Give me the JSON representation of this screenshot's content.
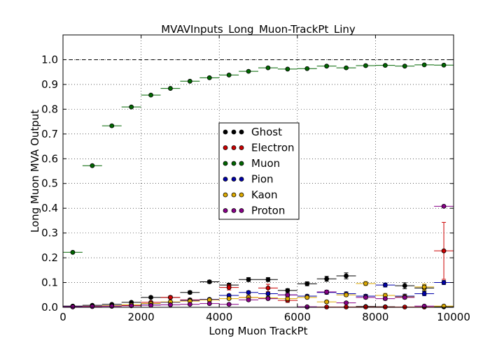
{
  "chart_data": {
    "type": "scatter",
    "title": "MVAVInputs_Long_Muon-TrackPt_Liny",
    "xlabel": "Long Muon TrackPt",
    "ylabel": "Long Muon MVA Output",
    "xlim": [
      0,
      10000
    ],
    "ylim": [
      0,
      1.1
    ],
    "x_ticks": [
      "0",
      "2000",
      "4000",
      "6000",
      "8000",
      "10000"
    ],
    "y_ticks": [
      "0.0",
      "0.1",
      "0.2",
      "0.3",
      "0.4",
      "0.5",
      "0.6",
      "0.7",
      "0.8",
      "0.9",
      "1.0"
    ],
    "x_tick_values": [
      0,
      2000,
      4000,
      6000,
      8000,
      10000
    ],
    "y_tick_values": [
      0,
      0.1,
      0.2,
      0.3,
      0.4,
      0.5,
      0.6,
      0.7,
      0.8,
      0.9,
      1.0
    ],
    "reference_line_y": 1.0,
    "bin_width": 500,
    "grid": true,
    "legend_position": "center",
    "x": [
      250,
      750,
      1250,
      1750,
      2250,
      2750,
      3250,
      3750,
      4250,
      4750,
      5250,
      5750,
      6250,
      6750,
      7250,
      7750,
      8250,
      8750,
      9250,
      9750
    ],
    "series": [
      {
        "name": "Ghost",
        "color": "#000000",
        "values": [
          0.005,
          0.008,
          0.012,
          0.02,
          0.04,
          0.04,
          0.06,
          0.103,
          0.09,
          0.112,
          0.112,
          0.068,
          0.095,
          0.115,
          0.127,
          0.003,
          0.002,
          0.087,
          0.078,
          0.002
        ],
        "errors": [
          0.002,
          0.002,
          0.003,
          0.003,
          0.005,
          0.005,
          0.006,
          0.006,
          0.007,
          0.008,
          0.008,
          0.007,
          0.008,
          0.01,
          0.012,
          0.002,
          0.002,
          0.012,
          0.012,
          0.002
        ]
      },
      {
        "name": "Electron",
        "color": "#cc0000",
        "values": [
          0.002,
          0.004,
          0.006,
          0.008,
          0.02,
          0.04,
          0.03,
          0.03,
          0.08,
          0.04,
          0.078,
          0.028,
          0.001,
          0.001,
          0.001,
          0.001,
          0.001,
          0.001,
          0.001,
          0.228
        ],
        "errors": [
          0.002,
          0.002,
          0.002,
          0.003,
          0.004,
          0.006,
          0.006,
          0.006,
          0.01,
          0.008,
          0.015,
          0.008,
          0.001,
          0.001,
          0.001,
          0.001,
          0.001,
          0.001,
          0.001,
          0.115
        ]
      },
      {
        "name": "Muon",
        "color": "#006600",
        "values": [
          0.222,
          0.572,
          0.733,
          0.809,
          0.857,
          0.884,
          0.913,
          0.927,
          0.938,
          0.953,
          0.967,
          0.962,
          0.964,
          0.974,
          0.967,
          0.976,
          0.977,
          0.974,
          0.979,
          0.978
        ],
        "errors": [
          0.002,
          0.002,
          0.002,
          0.002,
          0.002,
          0.002,
          0.002,
          0.002,
          0.002,
          0.002,
          0.002,
          0.002,
          0.002,
          0.002,
          0.002,
          0.002,
          0.002,
          0.002,
          0.002,
          0.002
        ]
      },
      {
        "name": "Pion",
        "color": "#0000aa",
        "values": [
          0.003,
          0.004,
          0.006,
          0.01,
          0.014,
          0.02,
          0.028,
          0.032,
          0.048,
          0.06,
          0.055,
          0.05,
          0.045,
          0.06,
          0.055,
          0.045,
          0.09,
          0.045,
          0.055,
          0.1
        ],
        "errors": [
          0.001,
          0.001,
          0.001,
          0.002,
          0.002,
          0.003,
          0.003,
          0.004,
          0.005,
          0.006,
          0.006,
          0.006,
          0.006,
          0.007,
          0.007,
          0.007,
          0.008,
          0.008,
          0.008,
          0.008
        ]
      },
      {
        "name": "Kaon",
        "color": "#ddaa00",
        "values": [
          0.002,
          0.004,
          0.006,
          0.01,
          0.015,
          0.022,
          0.025,
          0.03,
          0.035,
          0.04,
          0.038,
          0.035,
          0.04,
          0.022,
          0.05,
          0.096,
          0.048,
          0.042,
          0.082,
          0.005
        ],
        "errors": [
          0.001,
          0.001,
          0.001,
          0.002,
          0.002,
          0.003,
          0.003,
          0.004,
          0.004,
          0.005,
          0.005,
          0.005,
          0.006,
          0.006,
          0.007,
          0.008,
          0.008,
          0.008,
          0.012,
          0.003
        ]
      },
      {
        "name": "Proton",
        "color": "#880088",
        "values": [
          0.002,
          0.003,
          0.004,
          0.006,
          0.008,
          0.01,
          0.012,
          0.015,
          0.012,
          0.03,
          0.035,
          0.05,
          0.002,
          0.062,
          0.018,
          0.04,
          0.035,
          0.04,
          0.005,
          0.408
        ],
        "errors": [
          0.001,
          0.001,
          0.001,
          0.002,
          0.002,
          0.002,
          0.003,
          0.003,
          0.004,
          0.005,
          0.005,
          0.006,
          0.002,
          0.007,
          0.005,
          0.006,
          0.006,
          0.006,
          0.003,
          0.004
        ]
      }
    ]
  }
}
